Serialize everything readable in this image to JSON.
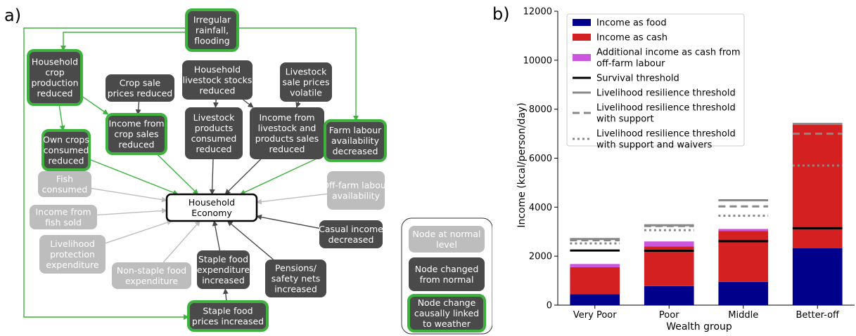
{
  "panel_a_label": "a)",
  "panel_b_label": "b)",
  "colors": {
    "changed_fill": "#4a4a4a",
    "normal_fill": "#bdbdbd",
    "weather_border": "#3db33d",
    "arrow_green": "#3db33d",
    "arrow_dark": "#4a4a4a",
    "arrow_grey": "#bdbdbd",
    "food": "#00008b",
    "cash": "#d42020",
    "offfarm": "#cc55dd"
  },
  "nodes": [
    {
      "id": "rainfall",
      "lines": [
        "Irregular",
        "rainfall,",
        "flooding"
      ],
      "state": "weather"
    },
    {
      "id": "crop_prod",
      "lines": [
        "Household",
        "crop",
        "production",
        "reduced"
      ],
      "state": "weather"
    },
    {
      "id": "crop_price",
      "lines": [
        "Crop sale",
        "prices reduced"
      ],
      "state": "changed"
    },
    {
      "id": "livestock_stock",
      "lines": [
        "Household",
        "livestock stocks",
        "reduced"
      ],
      "state": "changed"
    },
    {
      "id": "livestock_price",
      "lines": [
        "Livestock",
        "sale prices",
        "volatile"
      ],
      "state": "changed"
    },
    {
      "id": "own_crops",
      "lines": [
        "Own crops",
        "consumed",
        "reduced"
      ],
      "state": "weather"
    },
    {
      "id": "crop_income",
      "lines": [
        "Income from",
        "crop sales",
        "reduced"
      ],
      "state": "weather"
    },
    {
      "id": "livestock_products",
      "lines": [
        "Livestock",
        "products",
        "consumed",
        "reduced"
      ],
      "state": "changed"
    },
    {
      "id": "livestock_income",
      "lines": [
        "Income from",
        "livestock and",
        "products sales",
        "reduced"
      ],
      "state": "changed"
    },
    {
      "id": "farm_labour",
      "lines": [
        "Farm labour",
        "availability",
        "decreased"
      ],
      "state": "weather"
    },
    {
      "id": "fish_consumed",
      "lines": [
        "Fish",
        "consumed"
      ],
      "state": "normal"
    },
    {
      "id": "fish_sold",
      "lines": [
        "Income from",
        "fish sold"
      ],
      "state": "normal"
    },
    {
      "id": "livelihood_protection",
      "lines": [
        "Livelihood",
        "protection",
        "expenditure"
      ],
      "state": "normal"
    },
    {
      "id": "non_staple",
      "lines": [
        "Non-staple food",
        "expenditure"
      ],
      "state": "normal"
    },
    {
      "id": "staple_exp",
      "lines": [
        "Staple food",
        "expenditure",
        "increased"
      ],
      "state": "changed"
    },
    {
      "id": "pensions",
      "lines": [
        "Pensions/",
        "safety nets",
        "increased"
      ],
      "state": "changed"
    },
    {
      "id": "casual_income",
      "lines": [
        "Casual income",
        "decreased"
      ],
      "state": "changed"
    },
    {
      "id": "offfarm_labour",
      "lines": [
        "Off-farm labour",
        "availability"
      ],
      "state": "normal"
    },
    {
      "id": "staple_prices",
      "lines": [
        "Staple food",
        "prices increased"
      ],
      "state": "weather"
    },
    {
      "id": "household_economy",
      "lines": [
        "Household",
        "Economy"
      ],
      "state": "center"
    }
  ],
  "legend": [
    {
      "lines": [
        "Node at normal",
        "level"
      ],
      "state": "normal"
    },
    {
      "lines": [
        "Node changed",
        "from normal"
      ],
      "state": "changed"
    },
    {
      "lines": [
        "Node change",
        "causally linked",
        "to weather"
      ],
      "state": "weather"
    }
  ],
  "edges": [
    {
      "from": "rainfall",
      "to": "crop_prod",
      "color": "green"
    },
    {
      "from": "rainfall",
      "to": "farm_labour",
      "color": "green"
    },
    {
      "from": "rainfall",
      "to": "staple_prices",
      "color": "green"
    },
    {
      "from": "crop_prod",
      "to": "own_crops",
      "color": "green"
    },
    {
      "from": "crop_prod",
      "to": "crop_income",
      "color": "green"
    },
    {
      "from": "crop_price",
      "to": "crop_income",
      "color": "dark"
    },
    {
      "from": "livestock_stock",
      "to": "livestock_products",
      "color": "dark"
    },
    {
      "from": "livestock_stock",
      "to": "livestock_income",
      "color": "dark"
    },
    {
      "from": "livestock_price",
      "to": "livestock_income",
      "color": "dark"
    },
    {
      "from": "own_crops",
      "to": "household_economy",
      "color": "green"
    },
    {
      "from": "crop_income",
      "to": "household_economy",
      "color": "green"
    },
    {
      "from": "livestock_products",
      "to": "household_economy",
      "color": "dark"
    },
    {
      "from": "livestock_income",
      "to": "household_economy",
      "color": "dark"
    },
    {
      "from": "farm_labour",
      "to": "household_economy",
      "color": "green"
    },
    {
      "from": "fish_consumed",
      "to": "household_economy",
      "color": "grey"
    },
    {
      "from": "fish_sold",
      "to": "household_economy",
      "color": "grey"
    },
    {
      "from": "livelihood_protection",
      "to": "household_economy",
      "color": "grey"
    },
    {
      "from": "non_staple",
      "to": "household_economy",
      "color": "grey"
    },
    {
      "from": "staple_exp",
      "to": "household_economy",
      "color": "dark"
    },
    {
      "from": "pensions",
      "to": "household_economy",
      "color": "dark"
    },
    {
      "from": "casual_income",
      "to": "household_economy",
      "color": "dark"
    },
    {
      "from": "offfarm_labour",
      "to": "household_economy",
      "color": "grey"
    },
    {
      "from": "staple_prices",
      "to": "staple_exp",
      "color": "dark"
    }
  ],
  "chart_data": {
    "type": "bar",
    "stacked": true,
    "xlabel": "Wealth group",
    "ylabel": "Income (kcal/person/day)",
    "ylim": [
      0,
      12000
    ],
    "yticks": [
      0,
      2000,
      4000,
      6000,
      8000,
      10000,
      12000
    ],
    "categories": [
      "Very Poor",
      "Poor",
      "Middle",
      "Better-off"
    ],
    "series": [
      {
        "name": "Income as food",
        "values": [
          450,
          780,
          950,
          2330
        ],
        "color": "#00008b"
      },
      {
        "name": "Income as cash",
        "values": [
          1100,
          1620,
          2080,
          5030
        ],
        "color": "#d42020"
      },
      {
        "name": "Additional income as cash from off-farm labour",
        "values": [
          130,
          200,
          80,
          0
        ],
        "color": "#cc55dd"
      }
    ],
    "thresholds": [
      {
        "name": "Survival threshold",
        "style": "solid-black",
        "values": [
          2230,
          2220,
          2610,
          3140
        ]
      },
      {
        "name": "Livelihood resilience threshold",
        "style": "solid-grey",
        "values": [
          2700,
          3260,
          4280,
          7400
        ]
      },
      {
        "name": "Livelihood resilience threshold with support",
        "style": "dashed-grey",
        "values": [
          2650,
          3230,
          4030,
          7000
        ]
      },
      {
        "name": "Livelihood resilience threshold with support and waivers",
        "style": "dotted-grey",
        "values": [
          2520,
          3060,
          3650,
          5700
        ]
      }
    ],
    "legend_items": [
      {
        "kind": "patch",
        "color": "#00008b",
        "lines": [
          "Income as food"
        ]
      },
      {
        "kind": "patch",
        "color": "#d42020",
        "lines": [
          "Income as cash"
        ]
      },
      {
        "kind": "patch",
        "color": "#cc55dd",
        "lines": [
          "Additional income as cash from",
          "off-farm labour"
        ]
      },
      {
        "kind": "line",
        "style": "solid-black",
        "lines": [
          "Survival threshold"
        ]
      },
      {
        "kind": "line",
        "style": "solid-grey",
        "lines": [
          "Livelihood resilience threshold"
        ]
      },
      {
        "kind": "line",
        "style": "dashed-grey",
        "lines": [
          "Livelihood resilience threshold",
          "with support"
        ]
      },
      {
        "kind": "line",
        "style": "dotted-grey",
        "lines": [
          "Livelihood resilience threshold",
          "with support and waivers"
        ]
      }
    ],
    "legend_position": "top-left",
    "grid": false
  }
}
